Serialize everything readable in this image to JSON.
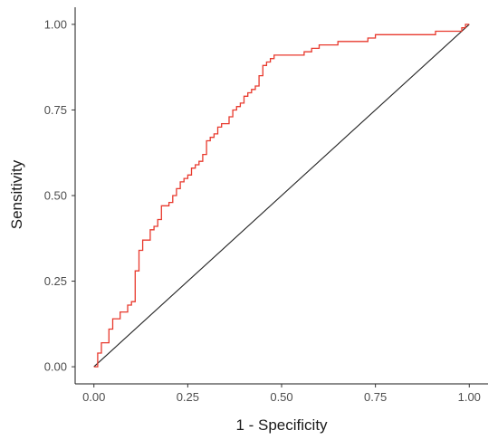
{
  "chart_data": {
    "type": "line",
    "title": "",
    "xlabel": "1 - Specificity",
    "ylabel": "Sensitivity",
    "xlim": [
      -0.05,
      1.05
    ],
    "ylim": [
      -0.05,
      1.05
    ],
    "x_ticks": [
      0,
      0.25,
      0.5,
      0.75,
      1
    ],
    "x_tick_labels": [
      "0.00",
      "0.25",
      "0.50",
      "0.75",
      "1.00"
    ],
    "y_ticks": [
      0,
      0.25,
      0.5,
      0.75,
      1
    ],
    "y_tick_labels": [
      "0.00",
      "0.25",
      "0.50",
      "0.75",
      "1.00"
    ],
    "grid": false,
    "legend": "none",
    "reference_line": {
      "from": [
        0,
        0
      ],
      "to": [
        1,
        1
      ],
      "color": "#222222"
    },
    "series": [
      {
        "color": "#e8392d",
        "step": true,
        "points": [
          [
            0.0,
            0.0
          ],
          [
            0.01,
            0.0
          ],
          [
            0.01,
            0.04
          ],
          [
            0.02,
            0.04
          ],
          [
            0.02,
            0.07
          ],
          [
            0.03,
            0.07
          ],
          [
            0.04,
            0.09
          ],
          [
            0.04,
            0.11
          ],
          [
            0.05,
            0.11
          ],
          [
            0.05,
            0.14
          ],
          [
            0.07,
            0.16
          ],
          [
            0.09,
            0.18
          ],
          [
            0.1,
            0.19
          ],
          [
            0.11,
            0.21
          ],
          [
            0.11,
            0.28
          ],
          [
            0.12,
            0.28
          ],
          [
            0.12,
            0.34
          ],
          [
            0.13,
            0.37
          ],
          [
            0.15,
            0.4
          ],
          [
            0.16,
            0.41
          ],
          [
            0.17,
            0.43
          ],
          [
            0.18,
            0.45
          ],
          [
            0.18,
            0.47
          ],
          [
            0.2,
            0.48
          ],
          [
            0.21,
            0.5
          ],
          [
            0.22,
            0.52
          ],
          [
            0.23,
            0.54
          ],
          [
            0.24,
            0.55
          ],
          [
            0.25,
            0.56
          ],
          [
            0.26,
            0.58
          ],
          [
            0.27,
            0.59
          ],
          [
            0.28,
            0.6
          ],
          [
            0.29,
            0.62
          ],
          [
            0.3,
            0.64
          ],
          [
            0.3,
            0.66
          ],
          [
            0.31,
            0.67
          ],
          [
            0.32,
            0.68
          ],
          [
            0.33,
            0.7
          ],
          [
            0.34,
            0.71
          ],
          [
            0.35,
            0.71
          ],
          [
            0.36,
            0.73
          ],
          [
            0.37,
            0.75
          ],
          [
            0.38,
            0.76
          ],
          [
            0.39,
            0.77
          ],
          [
            0.4,
            0.78
          ],
          [
            0.4,
            0.79
          ],
          [
            0.41,
            0.8
          ],
          [
            0.42,
            0.81
          ],
          [
            0.43,
            0.82
          ],
          [
            0.44,
            0.85
          ],
          [
            0.45,
            0.88
          ],
          [
            0.46,
            0.89
          ],
          [
            0.47,
            0.9
          ],
          [
            0.48,
            0.91
          ],
          [
            0.55,
            0.91
          ],
          [
            0.56,
            0.92
          ],
          [
            0.58,
            0.93
          ],
          [
            0.6,
            0.94
          ],
          [
            0.64,
            0.94
          ],
          [
            0.65,
            0.95
          ],
          [
            0.72,
            0.95
          ],
          [
            0.73,
            0.96
          ],
          [
            0.75,
            0.97
          ],
          [
            0.9,
            0.97
          ],
          [
            0.91,
            0.98
          ],
          [
            0.97,
            0.98
          ],
          [
            0.98,
            0.99
          ],
          [
            0.99,
            1.0
          ],
          [
            1.0,
            1.0
          ]
        ]
      }
    ]
  }
}
